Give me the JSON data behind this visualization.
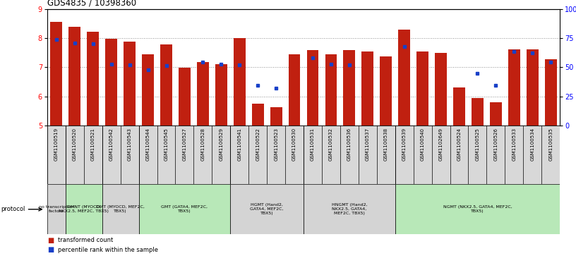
{
  "title": "GDS4835 / 10398360",
  "samples": [
    "GSM1100519",
    "GSM1100520",
    "GSM1100521",
    "GSM1100542",
    "GSM1100543",
    "GSM1100544",
    "GSM1100545",
    "GSM1100527",
    "GSM1100528",
    "GSM1100529",
    "GSM1100541",
    "GSM1100522",
    "GSM1100523",
    "GSM1100530",
    "GSM1100531",
    "GSM1100532",
    "GSM1100536",
    "GSM1100537",
    "GSM1100538",
    "GSM1100539",
    "GSM1100540",
    "GSM1102649",
    "GSM1100524",
    "GSM1100525",
    "GSM1100526",
    "GSM1100533",
    "GSM1100534",
    "GSM1100535"
  ],
  "bar_values": [
    8.55,
    8.38,
    8.22,
    7.97,
    7.88,
    7.44,
    7.78,
    6.98,
    7.18,
    7.1,
    8.0,
    5.75,
    5.62,
    7.44,
    7.6,
    7.44,
    7.6,
    7.55,
    7.38,
    8.28,
    7.55,
    7.5,
    6.3,
    5.95,
    5.8,
    7.62,
    7.62,
    7.28
  ],
  "blue_values": [
    7.95,
    7.82,
    7.8,
    7.1,
    7.08,
    6.92,
    7.05,
    null,
    7.18,
    7.1,
    7.08,
    6.38,
    6.28,
    null,
    7.32,
    7.1,
    7.08,
    null,
    null,
    7.72,
    null,
    null,
    null,
    6.8,
    6.38,
    7.55,
    7.48,
    7.18
  ],
  "groups": [
    {
      "label": "no transcription\nfactors",
      "start": 0,
      "end": 1,
      "color": "#d4d4d4"
    },
    {
      "label": "DMNT (MYOCD,\nNKX2.5, MEF2C, TBX5)",
      "start": 1,
      "end": 3,
      "color": "#b8e8b8"
    },
    {
      "label": "DMT (MYOCD, MEF2C,\nTBX5)",
      "start": 3,
      "end": 5,
      "color": "#d4d4d4"
    },
    {
      "label": "GMT (GATA4, MEF2C,\nTBX5)",
      "start": 5,
      "end": 10,
      "color": "#b8e8b8"
    },
    {
      "label": "HGMT (Hand2,\nGATA4, MEF2C,\nTBX5)",
      "start": 10,
      "end": 14,
      "color": "#d4d4d4"
    },
    {
      "label": "HNGMT (Hand2,\nNKX2.5, GATA4,\nMEF2C, TBX5)",
      "start": 14,
      "end": 19,
      "color": "#d4d4d4"
    },
    {
      "label": "NGMT (NKX2.5, GATA4, MEF2C,\nTBX5)",
      "start": 19,
      "end": 28,
      "color": "#b8e8b8"
    }
  ],
  "ylim": [
    5,
    9
  ],
  "yticks": [
    5,
    6,
    7,
    8,
    9
  ],
  "right_yticks": [
    0,
    25,
    50,
    75,
    100
  ],
  "right_yticklabels": [
    "0",
    "25",
    "50",
    "75",
    "100%"
  ],
  "bar_color": "#c02010",
  "blue_color": "#1840c8",
  "grid_color": "#909090",
  "label_bg": "#d8d8d8",
  "protocol_arrow_color": "#000000"
}
